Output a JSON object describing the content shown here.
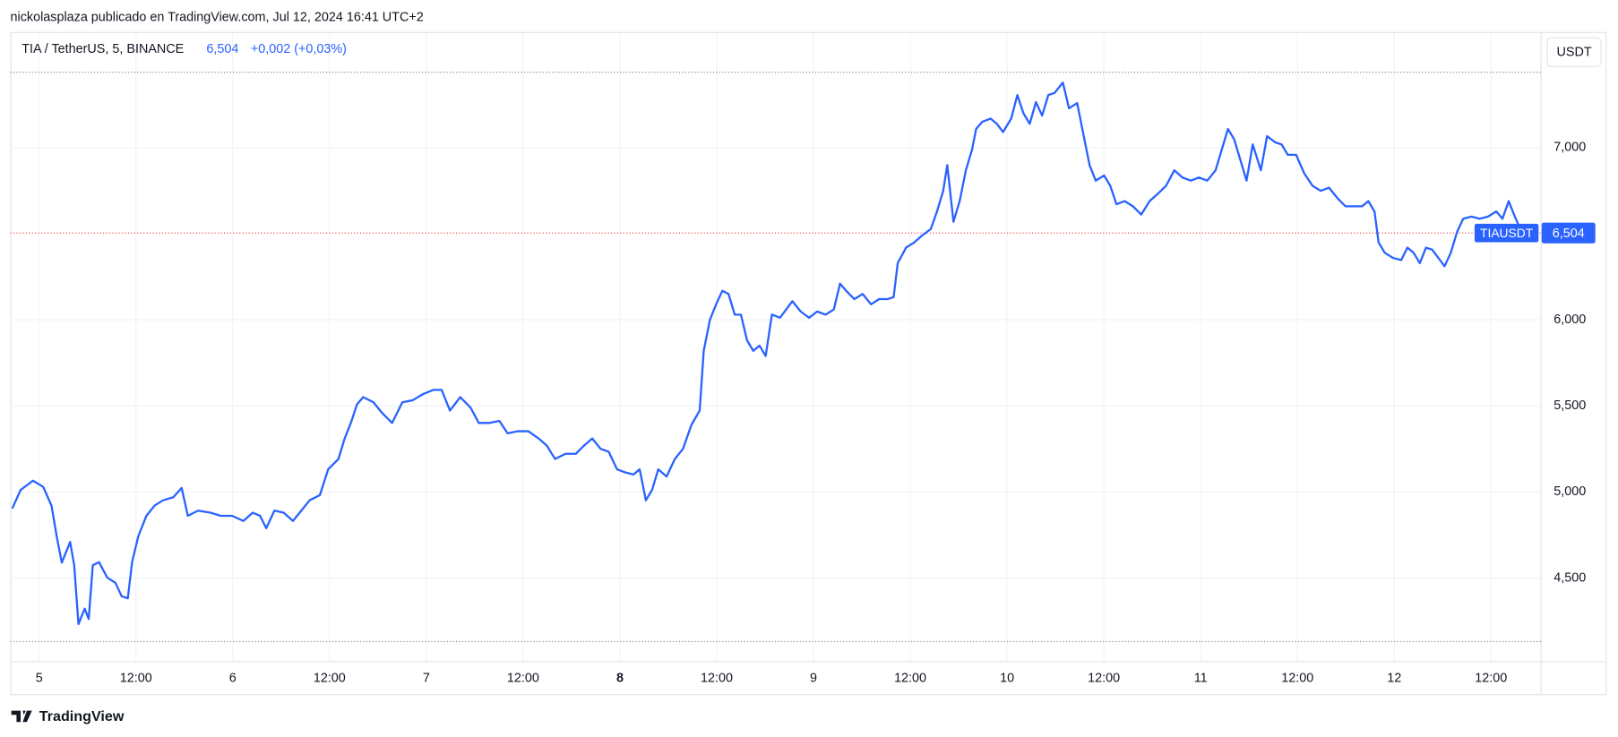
{
  "header": {
    "publisher": "nickolasplaza publicado en TradingView.com, Jul 12, 2024 16:41 UTC+2",
    "symbol": "TIA / TetherUS, 5, BINANCE",
    "price": "6,504",
    "change": "+0,002 (+0,03%)",
    "currency": "USDT"
  },
  "footer": {
    "brand": "TradingView"
  },
  "chart_data": {
    "type": "line",
    "x": [
      4.861,
      4.904,
      4.968,
      5.021,
      5.064,
      5.091,
      5.117,
      5.16,
      5.181,
      5.203,
      5.235,
      5.256,
      5.277,
      5.309,
      5.352,
      5.394,
      5.426,
      5.458,
      5.48,
      5.512,
      5.554,
      5.597,
      5.64,
      5.693,
      5.736,
      5.768,
      5.821,
      5.885,
      5.938,
      5.997,
      6.055,
      6.103,
      6.141,
      6.173,
      6.215,
      6.263,
      6.311,
      6.354,
      6.397,
      6.45,
      6.493,
      6.546,
      6.578,
      6.61,
      6.642,
      6.674,
      6.727,
      6.77,
      6.823,
      6.876,
      6.93,
      6.983,
      7.036,
      7.079,
      7.122,
      7.175,
      7.228,
      7.271,
      7.324,
      7.377,
      7.42,
      7.473,
      7.527,
      7.58,
      7.623,
      7.665,
      7.719,
      7.772,
      7.814,
      7.857,
      7.9,
      7.942,
      7.985,
      8.028,
      8.07,
      8.102,
      8.134,
      8.166,
      8.198,
      8.241,
      8.284,
      8.326,
      8.369,
      8.412,
      8.433,
      8.465,
      8.497,
      8.529,
      8.561,
      8.593,
      8.625,
      8.657,
      8.689,
      8.721,
      8.753,
      8.785,
      8.827,
      8.859,
      8.891,
      8.934,
      8.977,
      9.019,
      9.062,
      9.105,
      9.137,
      9.169,
      9.211,
      9.254,
      9.297,
      9.339,
      9.382,
      9.414,
      9.435,
      9.478,
      9.52,
      9.563,
      9.606,
      9.638,
      9.67,
      9.691,
      9.723,
      9.755,
      9.787,
      9.819,
      9.84,
      9.872,
      9.915,
      9.947,
      9.979,
      10.021,
      10.053,
      10.085,
      10.117,
      10.149,
      10.181,
      10.213,
      10.245,
      10.288,
      10.32,
      10.362,
      10.394,
      10.426,
      10.458,
      10.501,
      10.533,
      10.565,
      10.608,
      10.65,
      10.693,
      10.736,
      10.778,
      10.821,
      10.864,
      10.906,
      10.949,
      10.991,
      11.034,
      11.077,
      11.109,
      11.141,
      11.173,
      11.205,
      11.237,
      11.269,
      11.311,
      11.343,
      11.386,
      11.418,
      11.45,
      11.493,
      11.535,
      11.578,
      11.62,
      11.663,
      11.706,
      11.748,
      11.791,
      11.834,
      11.866,
      11.898,
      11.919,
      11.951,
      11.994,
      12.036,
      12.068,
      12.1,
      12.132,
      12.164,
      12.196,
      12.228,
      12.26,
      12.292,
      12.324,
      12.356,
      12.399,
      12.441,
      12.484,
      12.527,
      12.559,
      12.591,
      12.623,
      12.66
    ],
    "series": [
      {
        "name": "TIAUSDT",
        "color": "#2962ff",
        "values": [
          4.904,
          5.012,
          5.066,
          5.03,
          4.92,
          4.74,
          4.59,
          4.71,
          4.575,
          4.233,
          4.323,
          4.263,
          4.575,
          4.593,
          4.503,
          4.473,
          4.395,
          4.383,
          4.593,
          4.743,
          4.862,
          4.922,
          4.952,
          4.97,
          5.024,
          4.862,
          4.892,
          4.88,
          4.862,
          4.862,
          4.832,
          4.88,
          4.862,
          4.79,
          4.892,
          4.88,
          4.832,
          4.892,
          4.952,
          4.982,
          5.132,
          5.192,
          5.311,
          5.401,
          5.509,
          5.551,
          5.521,
          5.461,
          5.401,
          5.521,
          5.533,
          5.569,
          5.593,
          5.593,
          5.473,
          5.551,
          5.491,
          5.401,
          5.401,
          5.413,
          5.341,
          5.353,
          5.353,
          5.311,
          5.269,
          5.192,
          5.222,
          5.222,
          5.269,
          5.311,
          5.251,
          5.234,
          5.132,
          5.114,
          5.102,
          5.132,
          4.952,
          5.012,
          5.132,
          5.09,
          5.192,
          5.251,
          5.389,
          5.473,
          5.82,
          6.0,
          6.09,
          6.168,
          6.15,
          6.03,
          6.03,
          5.88,
          5.82,
          5.85,
          5.79,
          6.03,
          6.012,
          6.06,
          6.108,
          6.048,
          6.012,
          6.048,
          6.03,
          6.06,
          6.21,
          6.168,
          6.12,
          6.15,
          6.09,
          6.12,
          6.12,
          6.132,
          6.329,
          6.419,
          6.449,
          6.491,
          6.527,
          6.629,
          6.749,
          6.898,
          6.569,
          6.689,
          6.868,
          6.988,
          7.108,
          7.15,
          7.168,
          7.138,
          7.09,
          7.168,
          7.305,
          7.198,
          7.138,
          7.264,
          7.186,
          7.305,
          7.317,
          7.377,
          7.228,
          7.258,
          7.078,
          6.898,
          6.808,
          6.838,
          6.778,
          6.671,
          6.689,
          6.659,
          6.611,
          6.689,
          6.731,
          6.778,
          6.868,
          6.826,
          6.808,
          6.826,
          6.808,
          6.868,
          6.988,
          7.108,
          7.048,
          6.928,
          6.808,
          7.018,
          6.868,
          7.066,
          7.03,
          7.018,
          6.958,
          6.958,
          6.85,
          6.778,
          6.749,
          6.767,
          6.707,
          6.659,
          6.659,
          6.659,
          6.689,
          6.629,
          6.449,
          6.389,
          6.359,
          6.347,
          6.419,
          6.389,
          6.329,
          6.419,
          6.407,
          6.359,
          6.311,
          6.389,
          6.509,
          6.587,
          6.599,
          6.587,
          6.599,
          6.629,
          6.587,
          6.689,
          6.599,
          6.504
        ]
      }
    ],
    "xlim": [
      4.851,
      12.756
    ],
    "xticks": [
      5,
      {
        "value": 5.5,
        "label": "12:00"
      },
      6,
      {
        "value": 6.5,
        "label": "12:00"
      },
      7,
      {
        "value": 7.5,
        "label": "12:00"
      },
      8,
      {
        "value": 8.5,
        "label": "12:00"
      },
      9,
      {
        "value": 9.5,
        "label": "12:00"
      },
      10,
      {
        "value": 10.5,
        "label": "12:00"
      },
      11,
      {
        "value": 11.5,
        "label": "12:00"
      },
      12,
      {
        "value": 12.5,
        "label": "12:00"
      }
    ],
    "ylim": [
      4.018,
      7.665
    ],
    "yticks": [
      {
        "value": 4.5,
        "label": "4,500"
      },
      {
        "value": 5,
        "label": "5,000"
      },
      {
        "value": 5.5,
        "label": "5,500"
      },
      {
        "value": 6,
        "label": "6,000"
      },
      {
        "value": 7,
        "label": "7,000"
      }
    ],
    "grid": true,
    "price_line": {
      "value": 6.504,
      "label": "6,504",
      "color": "#f23645"
    },
    "high_line": 7.437,
    "low_line": 4.132
  }
}
